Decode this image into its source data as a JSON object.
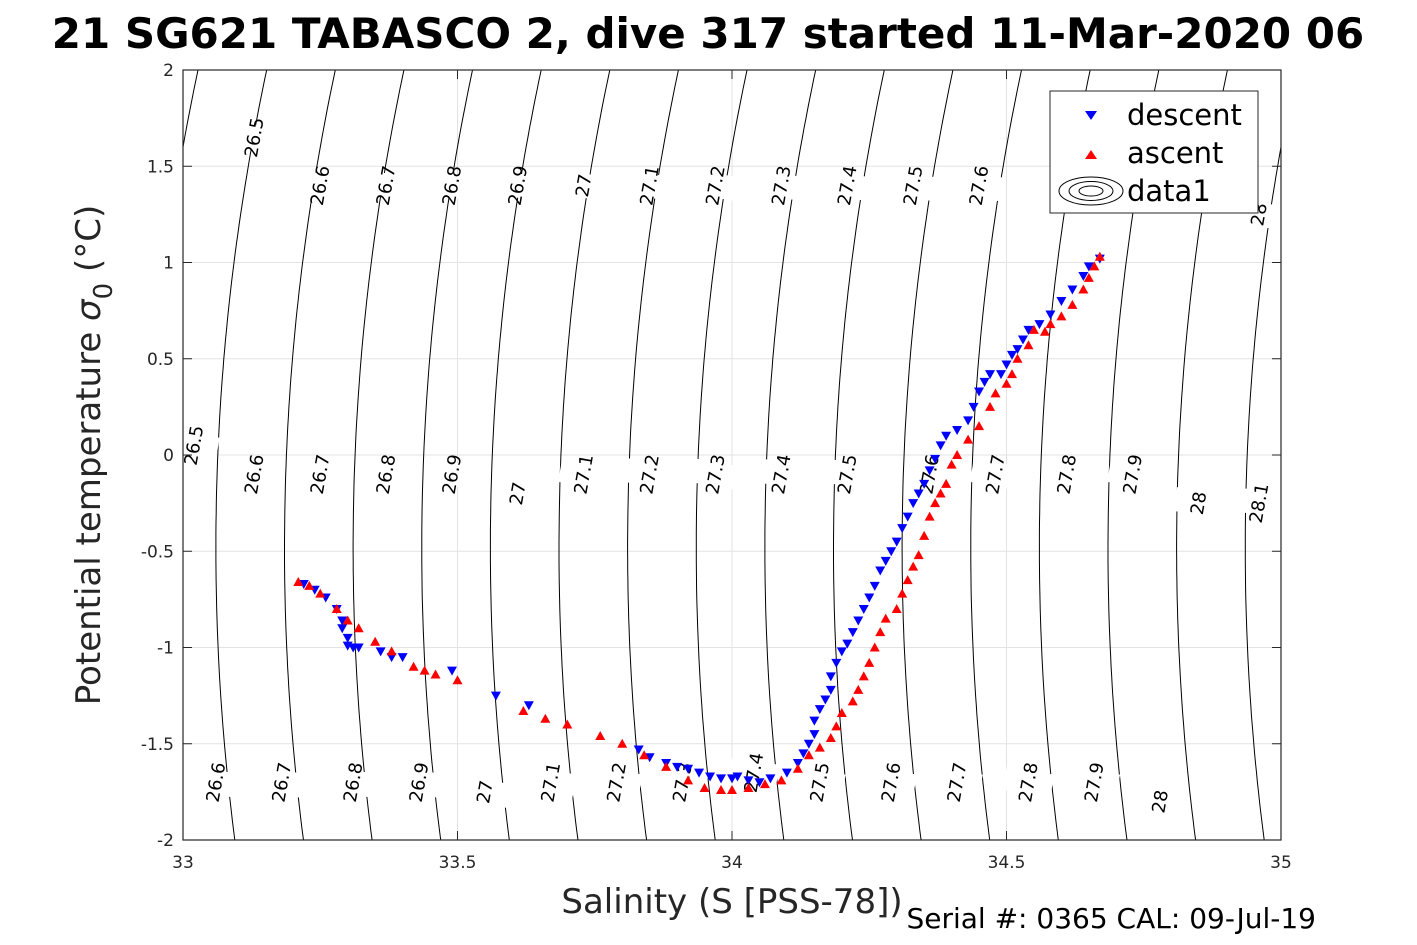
{
  "title": "21 SG621 TABASCO 2, dive 317 started 11-Mar-2020 06",
  "footer": "Serial #: 0365  CAL: 09-Jul-19",
  "chart_data": {
    "type": "scatter",
    "title": "21 SG621 TABASCO 2, dive 317 started 11-Mar-2020 06",
    "xlabel": "Salinity (S [PSS-78])",
    "ylabel_text": "Potential temperature ",
    "ylabel_sigma": "σ",
    "ylabel_sub": "0",
    "ylabel_unit": " (°C)",
    "xlim": [
      33,
      35
    ],
    "ylim": [
      -2,
      2
    ],
    "xticks": [
      "33",
      "33.5",
      "34",
      "34.5",
      "35"
    ],
    "yticks": [
      "-2",
      "-1.5",
      "-1",
      "-0.5",
      "0",
      "0.5",
      "1",
      "1.5",
      "2"
    ],
    "grid": true,
    "legend": {
      "position": "top-right",
      "entries": [
        {
          "label": "descent",
          "color": "#0000ff",
          "marker": "triangle-down"
        },
        {
          "label": "ascent",
          "color": "#ff0000",
          "marker": "triangle-up"
        },
        {
          "label": "data1",
          "color": "#000000",
          "marker": "contour"
        }
      ]
    },
    "contours": {
      "levels": [
        "26.5",
        "26.6",
        "26.7",
        "26.8",
        "26.9",
        "27",
        "27.1",
        "27.2",
        "27.3",
        "27.4",
        "27.5",
        "27.6",
        "27.7",
        "27.8",
        "27.9",
        "28",
        "28.1"
      ],
      "top_labels": [
        {
          "text": "26.5",
          "s": 33.13,
          "t": 1.65
        },
        {
          "text": "26.6",
          "s": 33.25,
          "t": 1.4
        },
        {
          "text": "26.7",
          "s": 33.37,
          "t": 1.4
        },
        {
          "text": "26.8",
          "s": 33.49,
          "t": 1.4
        },
        {
          "text": "26.9",
          "s": 33.61,
          "t": 1.4
        },
        {
          "text": "27",
          "s": 33.73,
          "t": 1.4
        },
        {
          "text": "27.1",
          "s": 33.85,
          "t": 1.4
        },
        {
          "text": "27.2",
          "s": 33.97,
          "t": 1.4
        },
        {
          "text": "27.3",
          "s": 34.09,
          "t": 1.4
        },
        {
          "text": "27.4",
          "s": 34.21,
          "t": 1.4
        },
        {
          "text": "27.5",
          "s": 34.33,
          "t": 1.4
        },
        {
          "text": "27.6",
          "s": 34.45,
          "t": 1.4
        },
        {
          "text": "28",
          "s": 34.96,
          "t": 1.25
        }
      ],
      "mid_labels": [
        {
          "text": "26.5",
          "s": 33.02,
          "t": 0.05
        },
        {
          "text": "26.6",
          "s": 33.13,
          "t": -0.1
        },
        {
          "text": "26.7",
          "s": 33.25,
          "t": -0.1
        },
        {
          "text": "26.8",
          "s": 33.37,
          "t": -0.1
        },
        {
          "text": "26.9",
          "s": 33.49,
          "t": -0.1
        },
        {
          "text": "27",
          "s": 33.61,
          "t": -0.2
        },
        {
          "text": "27.1",
          "s": 33.73,
          "t": -0.1
        },
        {
          "text": "27.2",
          "s": 33.85,
          "t": -0.1
        },
        {
          "text": "27.3",
          "s": 33.97,
          "t": -0.1
        },
        {
          "text": "27.4",
          "s": 34.09,
          "t": -0.1
        },
        {
          "text": "27.5",
          "s": 34.21,
          "t": -0.1
        },
        {
          "text": "27.6",
          "s": 34.36,
          "t": -0.1
        },
        {
          "text": "27.7",
          "s": 34.48,
          "t": -0.1
        },
        {
          "text": "27.8",
          "s": 34.61,
          "t": -0.1
        },
        {
          "text": "27.9",
          "s": 34.73,
          "t": -0.1
        },
        {
          "text": "28",
          "s": 34.85,
          "t": -0.25
        },
        {
          "text": "28.1",
          "s": 34.96,
          "t": -0.25
        }
      ],
      "bottom_labels": [
        {
          "text": "26.6",
          "s": 33.06,
          "t": -1.7
        },
        {
          "text": "26.7",
          "s": 33.18,
          "t": -1.7
        },
        {
          "text": "26.8",
          "s": 33.31,
          "t": -1.7
        },
        {
          "text": "26.9",
          "s": 33.43,
          "t": -1.7
        },
        {
          "text": "27",
          "s": 33.55,
          "t": -1.75
        },
        {
          "text": "27.1",
          "s": 33.67,
          "t": -1.7
        },
        {
          "text": "27.2",
          "s": 33.79,
          "t": -1.7
        },
        {
          "text": "27.3",
          "s": 33.91,
          "t": -1.7
        },
        {
          "text": "27.4",
          "s": 34.04,
          "t": -1.65
        },
        {
          "text": "27.5",
          "s": 34.16,
          "t": -1.7
        },
        {
          "text": "27.6",
          "s": 34.29,
          "t": -1.7
        },
        {
          "text": "27.7",
          "s": 34.41,
          "t": -1.7
        },
        {
          "text": "27.8",
          "s": 34.54,
          "t": -1.7
        },
        {
          "text": "27.9",
          "s": 34.66,
          "t": -1.7
        },
        {
          "text": "28",
          "s": 34.78,
          "t": -1.8
        }
      ]
    },
    "series": [
      {
        "name": "descent",
        "color": "#0000ff",
        "marker": "triangle-down",
        "points": [
          [
            33.22,
            -0.67
          ],
          [
            33.24,
            -0.7
          ],
          [
            33.26,
            -0.74
          ],
          [
            33.28,
            -0.8
          ],
          [
            33.29,
            -0.86
          ],
          [
            33.29,
            -0.9
          ],
          [
            33.3,
            -0.95
          ],
          [
            33.3,
            -0.99
          ],
          [
            33.31,
            -1.0
          ],
          [
            33.32,
            -1.0
          ],
          [
            33.36,
            -1.02
          ],
          [
            33.38,
            -1.05
          ],
          [
            33.4,
            -1.05
          ],
          [
            33.49,
            -1.12
          ],
          [
            33.57,
            -1.25
          ],
          [
            33.63,
            -1.3
          ],
          [
            33.83,
            -1.53
          ],
          [
            33.85,
            -1.57
          ],
          [
            33.88,
            -1.6
          ],
          [
            33.9,
            -1.62
          ],
          [
            33.92,
            -1.63
          ],
          [
            33.94,
            -1.65
          ],
          [
            33.96,
            -1.67
          ],
          [
            33.98,
            -1.68
          ],
          [
            34.0,
            -1.68
          ],
          [
            34.01,
            -1.67
          ],
          [
            34.03,
            -1.69
          ],
          [
            34.05,
            -1.7
          ],
          [
            34.07,
            -1.68
          ],
          [
            34.1,
            -1.65
          ],
          [
            34.12,
            -1.6
          ],
          [
            34.13,
            -1.55
          ],
          [
            34.14,
            -1.5
          ],
          [
            34.15,
            -1.45
          ],
          [
            34.15,
            -1.38
          ],
          [
            34.16,
            -1.32
          ],
          [
            34.17,
            -1.27
          ],
          [
            34.18,
            -1.22
          ],
          [
            34.18,
            -1.15
          ],
          [
            34.19,
            -1.08
          ],
          [
            34.2,
            -1.02
          ],
          [
            34.21,
            -0.98
          ],
          [
            34.22,
            -0.92
          ],
          [
            34.23,
            -0.86
          ],
          [
            34.24,
            -0.8
          ],
          [
            34.25,
            -0.74
          ],
          [
            34.26,
            -0.68
          ],
          [
            34.27,
            -0.6
          ],
          [
            34.28,
            -0.55
          ],
          [
            34.29,
            -0.5
          ],
          [
            34.3,
            -0.45
          ],
          [
            34.31,
            -0.38
          ],
          [
            34.32,
            -0.32
          ],
          [
            34.33,
            -0.25
          ],
          [
            34.34,
            -0.2
          ],
          [
            34.35,
            -0.15
          ],
          [
            34.36,
            -0.08
          ],
          [
            34.37,
            -0.02
          ],
          [
            34.38,
            0.05
          ],
          [
            34.39,
            0.1
          ],
          [
            34.41,
            0.13
          ],
          [
            34.43,
            0.18
          ],
          [
            34.44,
            0.25
          ],
          [
            34.45,
            0.33
          ],
          [
            34.46,
            0.38
          ],
          [
            34.47,
            0.42
          ],
          [
            34.49,
            0.42
          ],
          [
            34.5,
            0.47
          ],
          [
            34.51,
            0.52
          ],
          [
            34.52,
            0.55
          ],
          [
            34.53,
            0.6
          ],
          [
            34.54,
            0.65
          ],
          [
            34.56,
            0.68
          ],
          [
            34.58,
            0.73
          ],
          [
            34.6,
            0.8
          ],
          [
            34.62,
            0.86
          ],
          [
            34.64,
            0.93
          ],
          [
            34.65,
            0.98
          ],
          [
            34.67,
            1.02
          ]
        ]
      },
      {
        "name": "ascent",
        "color": "#ff0000",
        "marker": "triangle-up",
        "points": [
          [
            33.21,
            -0.66
          ],
          [
            33.23,
            -0.68
          ],
          [
            33.25,
            -0.72
          ],
          [
            33.28,
            -0.8
          ],
          [
            33.3,
            -0.86
          ],
          [
            33.32,
            -0.9
          ],
          [
            33.35,
            -0.97
          ],
          [
            33.38,
            -1.02
          ],
          [
            33.42,
            -1.1
          ],
          [
            33.44,
            -1.12
          ],
          [
            33.46,
            -1.14
          ],
          [
            33.5,
            -1.17
          ],
          [
            33.62,
            -1.33
          ],
          [
            33.66,
            -1.37
          ],
          [
            33.7,
            -1.4
          ],
          [
            33.76,
            -1.46
          ],
          [
            33.8,
            -1.5
          ],
          [
            33.84,
            -1.56
          ],
          [
            33.88,
            -1.62
          ],
          [
            33.92,
            -1.69
          ],
          [
            33.95,
            -1.73
          ],
          [
            33.98,
            -1.74
          ],
          [
            34.0,
            -1.74
          ],
          [
            34.03,
            -1.73
          ],
          [
            34.06,
            -1.71
          ],
          [
            34.09,
            -1.69
          ],
          [
            34.12,
            -1.63
          ],
          [
            34.14,
            -1.56
          ],
          [
            34.16,
            -1.52
          ],
          [
            34.18,
            -1.47
          ],
          [
            34.19,
            -1.41
          ],
          [
            34.2,
            -1.34
          ],
          [
            34.22,
            -1.28
          ],
          [
            34.23,
            -1.22
          ],
          [
            34.24,
            -1.15
          ],
          [
            34.25,
            -1.08
          ],
          [
            34.26,
            -1.0
          ],
          [
            34.27,
            -0.92
          ],
          [
            34.28,
            -0.85
          ],
          [
            34.3,
            -0.8
          ],
          [
            34.31,
            -0.72
          ],
          [
            34.32,
            -0.65
          ],
          [
            34.33,
            -0.58
          ],
          [
            34.34,
            -0.52
          ],
          [
            34.35,
            -0.42
          ],
          [
            34.36,
            -0.32
          ],
          [
            34.37,
            -0.25
          ],
          [
            34.38,
            -0.2
          ],
          [
            34.39,
            -0.15
          ],
          [
            34.4,
            -0.05
          ],
          [
            34.41,
            0.0
          ],
          [
            34.43,
            0.08
          ],
          [
            34.45,
            0.15
          ],
          [
            34.47,
            0.25
          ],
          [
            34.48,
            0.32
          ],
          [
            34.5,
            0.37
          ],
          [
            34.51,
            0.42
          ],
          [
            34.52,
            0.5
          ],
          [
            34.54,
            0.57
          ],
          [
            34.55,
            0.65
          ],
          [
            34.57,
            0.64
          ],
          [
            34.58,
            0.68
          ],
          [
            34.6,
            0.72
          ],
          [
            34.62,
            0.78
          ],
          [
            34.64,
            0.86
          ],
          [
            34.65,
            0.92
          ],
          [
            34.66,
            0.98
          ],
          [
            34.67,
            1.03
          ]
        ]
      }
    ]
  }
}
